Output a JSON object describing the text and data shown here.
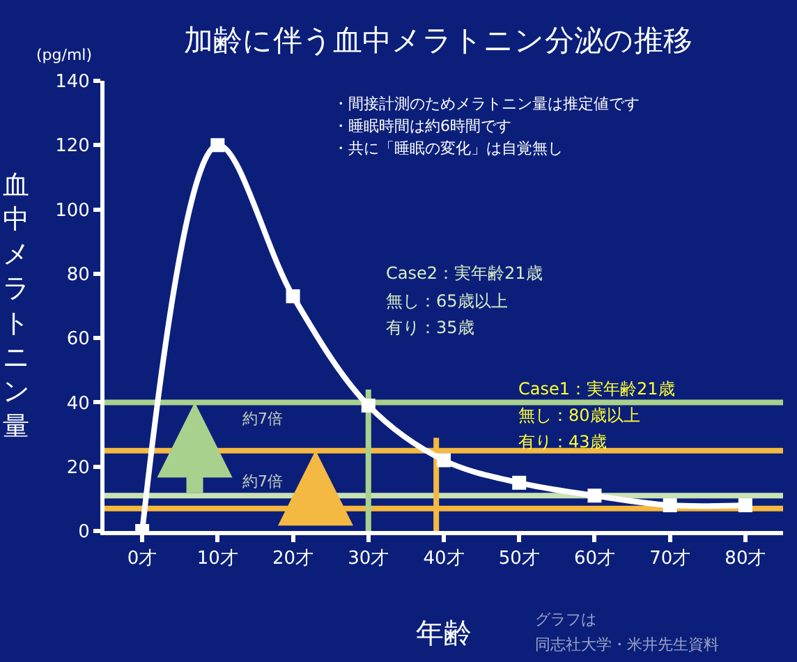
{
  "chart_data": {
    "type": "line",
    "title": "加齢に伴う血中メラトニン分泌の推移",
    "xlabel": "年齢",
    "ylabel": "血中メラトニン量",
    "x": [
      0,
      10,
      20,
      30,
      40,
      50,
      60,
      70,
      80
    ],
    "series": [
      {
        "color": "#ffffff",
        "values": [
          0,
          120,
          73,
          39,
          22,
          15,
          11,
          8,
          8
        ]
      }
    ],
    "xlim": [
      -5,
      85
    ],
    "ylim": [
      0,
      140
    ],
    "xticks": [
      {
        "value": 0,
        "label": "0才"
      },
      {
        "value": 10,
        "label": "10才"
      },
      {
        "value": 20,
        "label": "20才"
      },
      {
        "value": 30,
        "label": "30才"
      },
      {
        "value": 40,
        "label": "40才"
      },
      {
        "value": 50,
        "label": "50才"
      },
      {
        "value": 60,
        "label": "60才"
      },
      {
        "value": 70,
        "label": "70才"
      },
      {
        "value": 80,
        "label": "80才"
      }
    ],
    "yticks": [
      0,
      20,
      40,
      60,
      80,
      100,
      120,
      140
    ],
    "marker": "square",
    "line_style": "solid",
    "ref_lines": [
      {
        "axis": "y",
        "value": 40,
        "color": "#a9d18e"
      },
      {
        "axis": "y",
        "value": 25,
        "color": "#f4b942"
      },
      {
        "axis": "y",
        "value": 11,
        "color": "#c8e2b4"
      },
      {
        "axis": "y",
        "value": 7,
        "color": "#f5b83d"
      },
      {
        "axis": "x",
        "value": 30,
        "color": "#a9d18e"
      },
      {
        "axis": "x",
        "value": 39,
        "color": "#f4b942"
      }
    ],
    "annotations": [
      "(pg/ml)",
      "・間接計測のためメラトニン量は推定値です",
      "・睡眠時間は約6時間です",
      "・共に「睡眠の変化」は自覚無し",
      "Case2：実年齢21歳",
      "無し：65歳以上",
      "有り：35歳",
      "Case1：実年齢21歳",
      "無し：80歳以上",
      "有り：43歳",
      "約7倍",
      "約7倍",
      "グラフは",
      "同志社大学・米井先生資料"
    ]
  }
}
